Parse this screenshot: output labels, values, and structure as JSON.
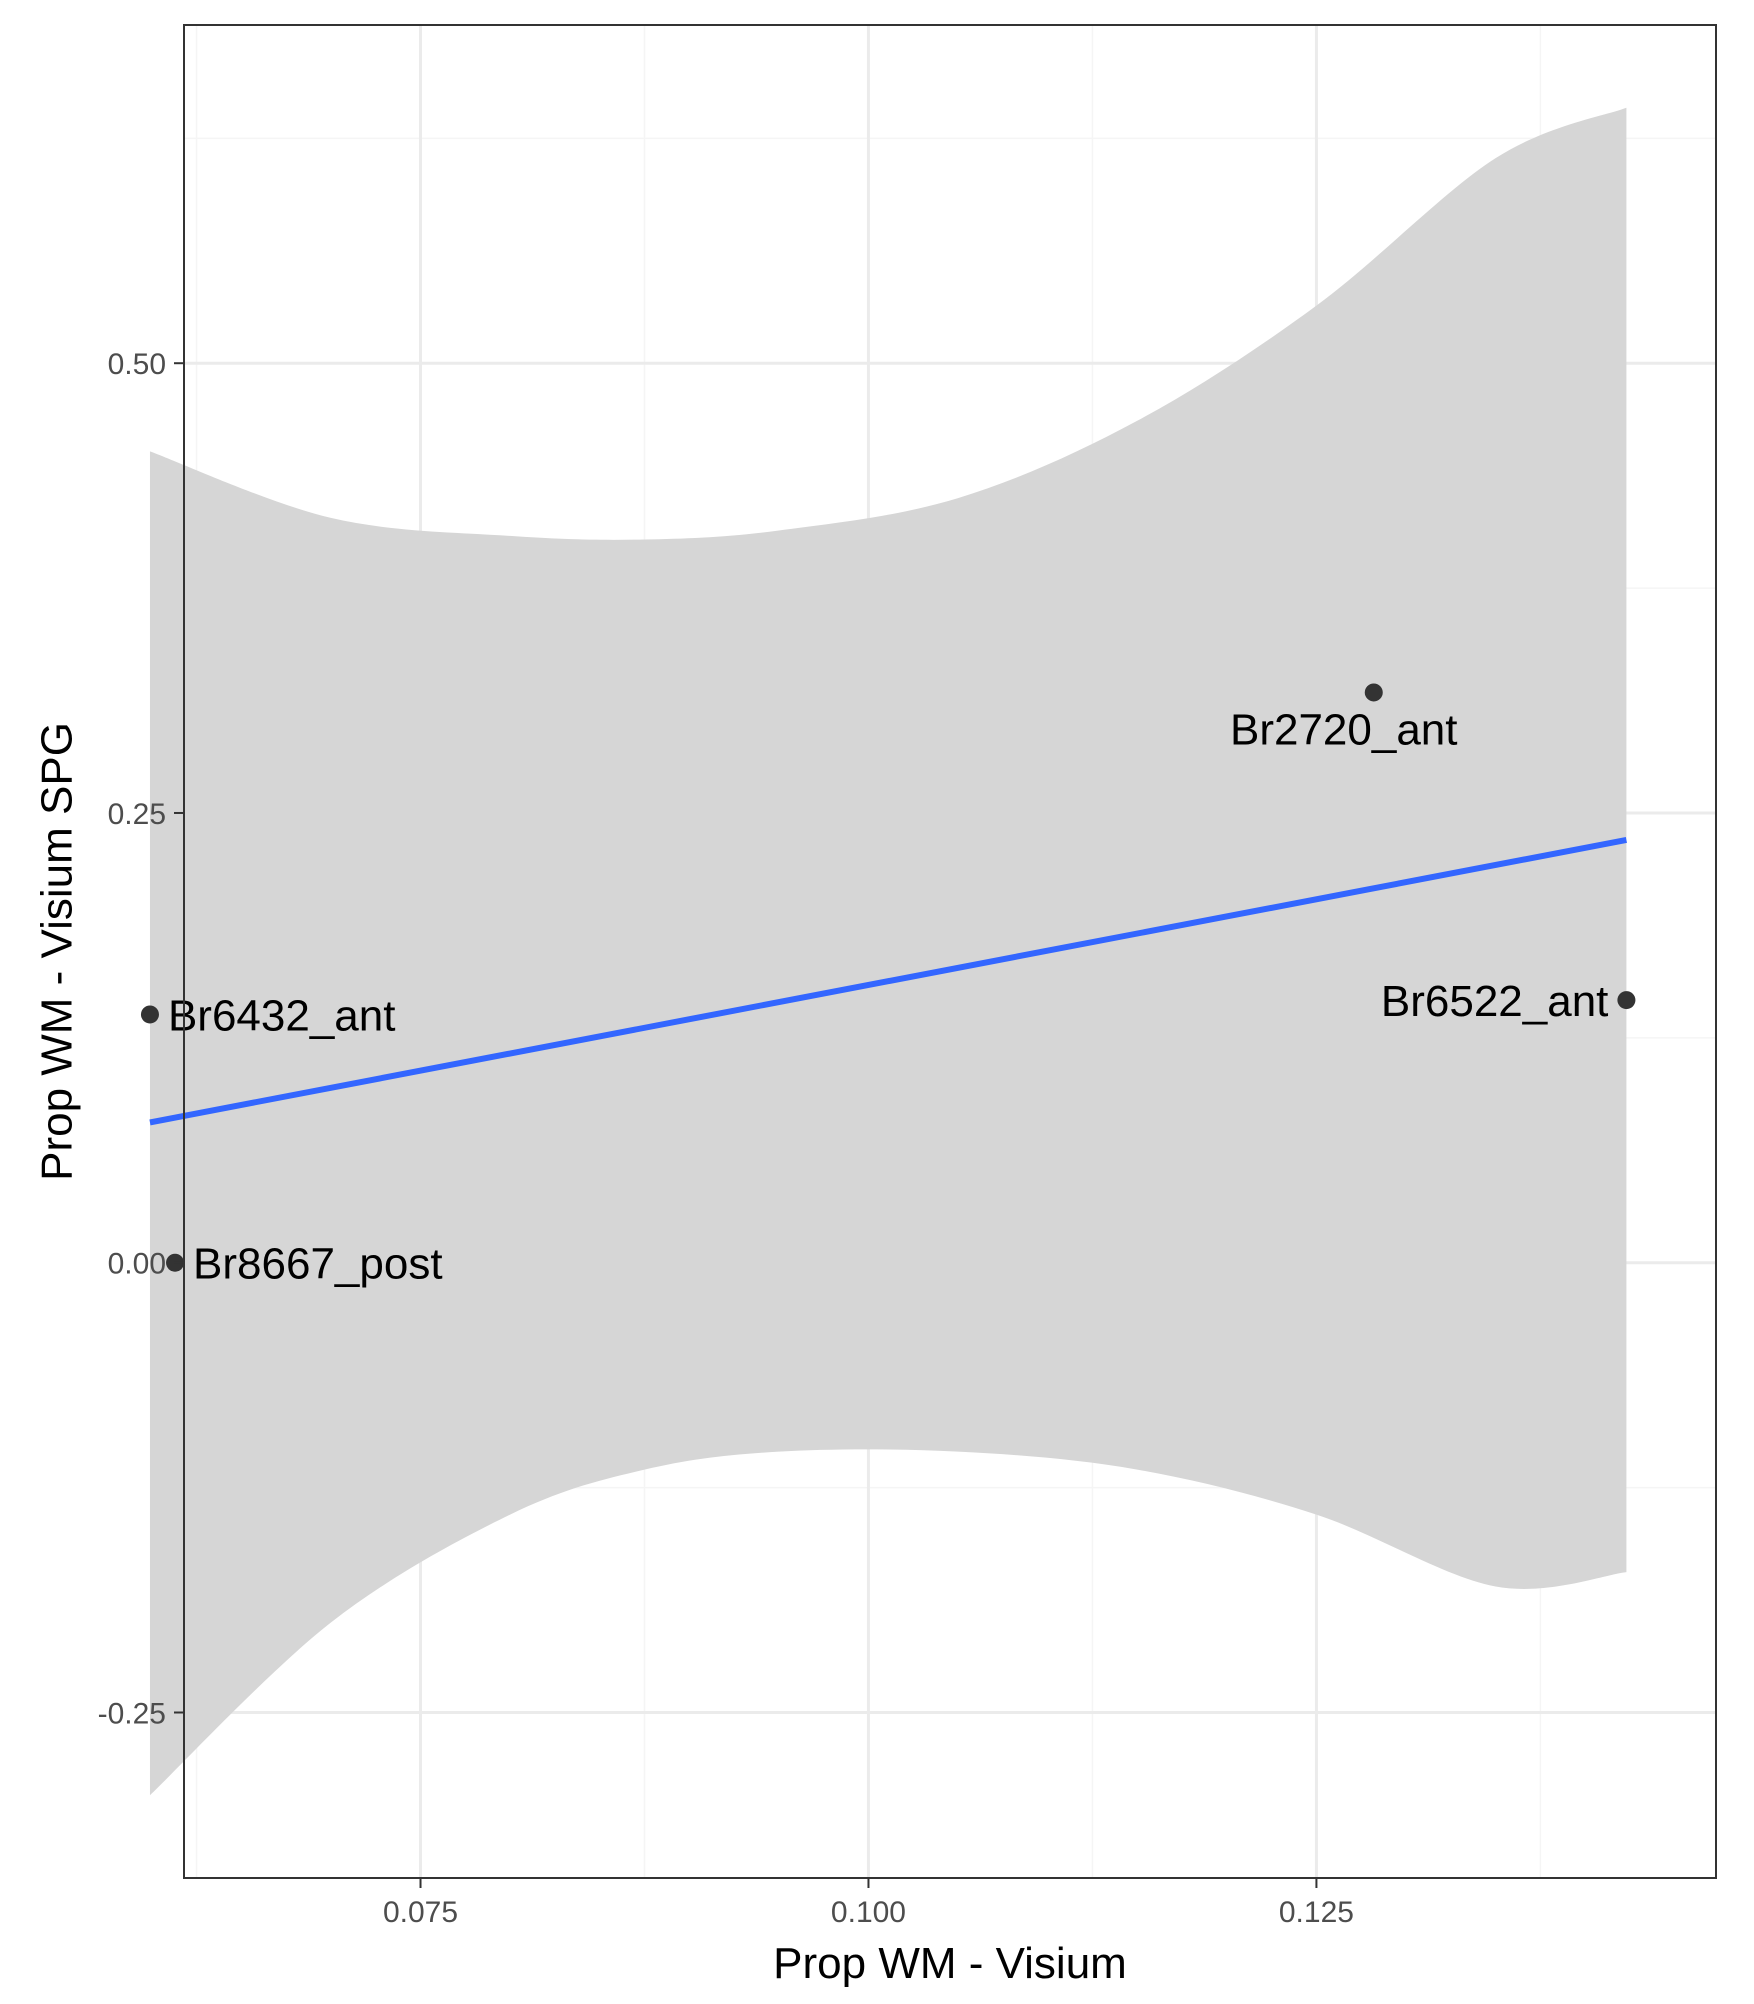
{
  "chart_data": {
    "type": "scatter",
    "title": "",
    "xlabel": "Prop WM - Visium",
    "ylabel": "Prop WM - Visium SPG",
    "xlim": [
      0.0618,
      0.1473
    ],
    "ylim": [
      -0.342,
      0.688
    ],
    "x_ticks": [
      {
        "value": 0.075,
        "label": "0.075"
      },
      {
        "value": 0.1,
        "label": "0.100"
      },
      {
        "value": 0.125,
        "label": "0.125"
      }
    ],
    "x_minor": [
      0.0625,
      0.0875,
      0.1125,
      0.1375
    ],
    "y_ticks": [
      {
        "value": -0.25,
        "label": "-0.25"
      },
      {
        "value": 0.0,
        "label": "0.00"
      },
      {
        "value": 0.25,
        "label": "0.25"
      },
      {
        "value": 0.5,
        "label": "0.50"
      }
    ],
    "y_minor": [
      -0.125,
      0.125,
      0.375,
      0.625
    ],
    "grid": true,
    "points": [
      {
        "x": 0.0599,
        "y": 0.138,
        "label": "Br6432_ant",
        "anchor": "start"
      },
      {
        "x": 0.0613,
        "y": 0.0,
        "label": "Br8667_post",
        "anchor": "start"
      },
      {
        "x": 0.1282,
        "y": 0.317,
        "label": "Br2720_ant",
        "anchor": "middle-below"
      },
      {
        "x": 0.1423,
        "y": 0.146,
        "label": "Br6522_ant",
        "anchor": "end"
      }
    ],
    "fit_line": {
      "x": [
        0.0599,
        0.1423
      ],
      "y": [
        0.078,
        0.235
      ]
    },
    "confidence_band": {
      "x": [
        0.0599,
        0.07,
        0.08,
        0.0875,
        0.095,
        0.105,
        0.115,
        0.125,
        0.135,
        0.1423
      ],
      "upper": [
        0.451,
        0.414,
        0.404,
        0.402,
        0.407,
        0.425,
        0.468,
        0.532,
        0.614,
        0.642
      ],
      "lower": [
        -0.296,
        -0.2,
        -0.14,
        -0.115,
        -0.105,
        -0.105,
        -0.115,
        -0.14,
        -0.18,
        -0.172
      ]
    },
    "colors": {
      "fit_line": "#3366ff",
      "band": "#d6d6d6",
      "points": "#333333",
      "grid_major": "#ebebeb",
      "grid_minor": "#f5f5f5",
      "border": "#333333"
    }
  }
}
